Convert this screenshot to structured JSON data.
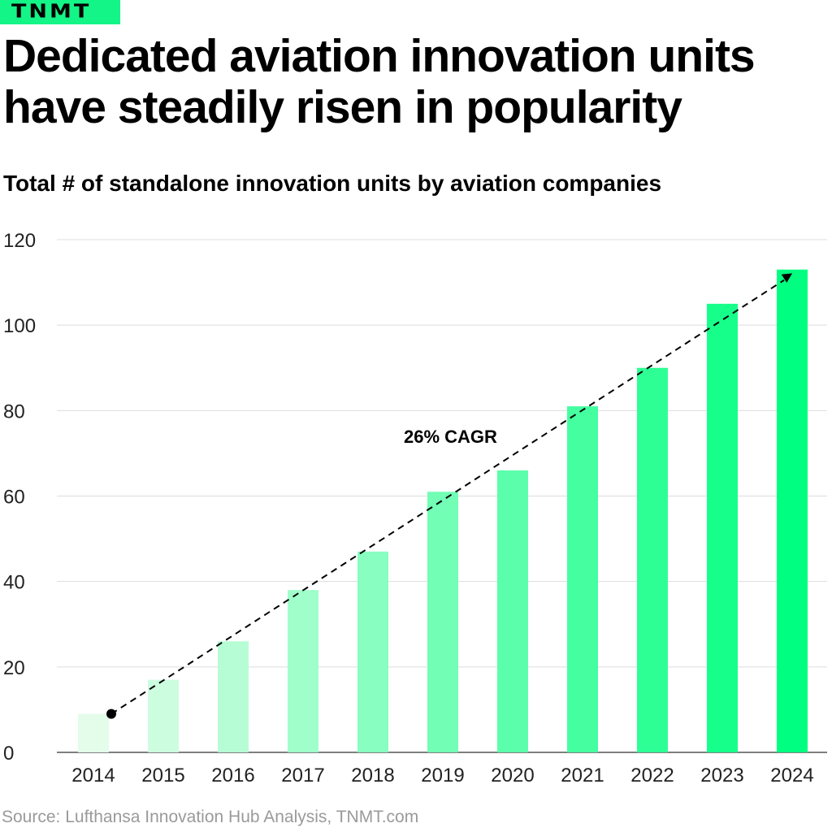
{
  "logo": "TNMT",
  "title_line1": "Dedicated aviation innovation units",
  "title_line2": "have steadily risen in popularity",
  "source": "Source: Lufthansa Innovation Hub Analysis, TNMT.com",
  "colors": {
    "brand": "#14f587",
    "bar_start": "#e3fdea",
    "bar_end": "#00ff80"
  },
  "chart_data": {
    "type": "bar",
    "title": "Total # of standalone innovation units by aviation companies",
    "categories": [
      "2014",
      "2015",
      "2016",
      "2017",
      "2018",
      "2019",
      "2020",
      "2021",
      "2022",
      "2023",
      "2024"
    ],
    "values": [
      9,
      17,
      26,
      38,
      47,
      61,
      66,
      81,
      90,
      105,
      113
    ],
    "ylim": [
      0,
      120
    ],
    "yticks": [
      0,
      20,
      40,
      60,
      80,
      100,
      120
    ],
    "grid": true,
    "annotation": "26% CAGR",
    "trend_line": {
      "from": "2014",
      "to": "2024",
      "style": "dashed arrow"
    }
  }
}
